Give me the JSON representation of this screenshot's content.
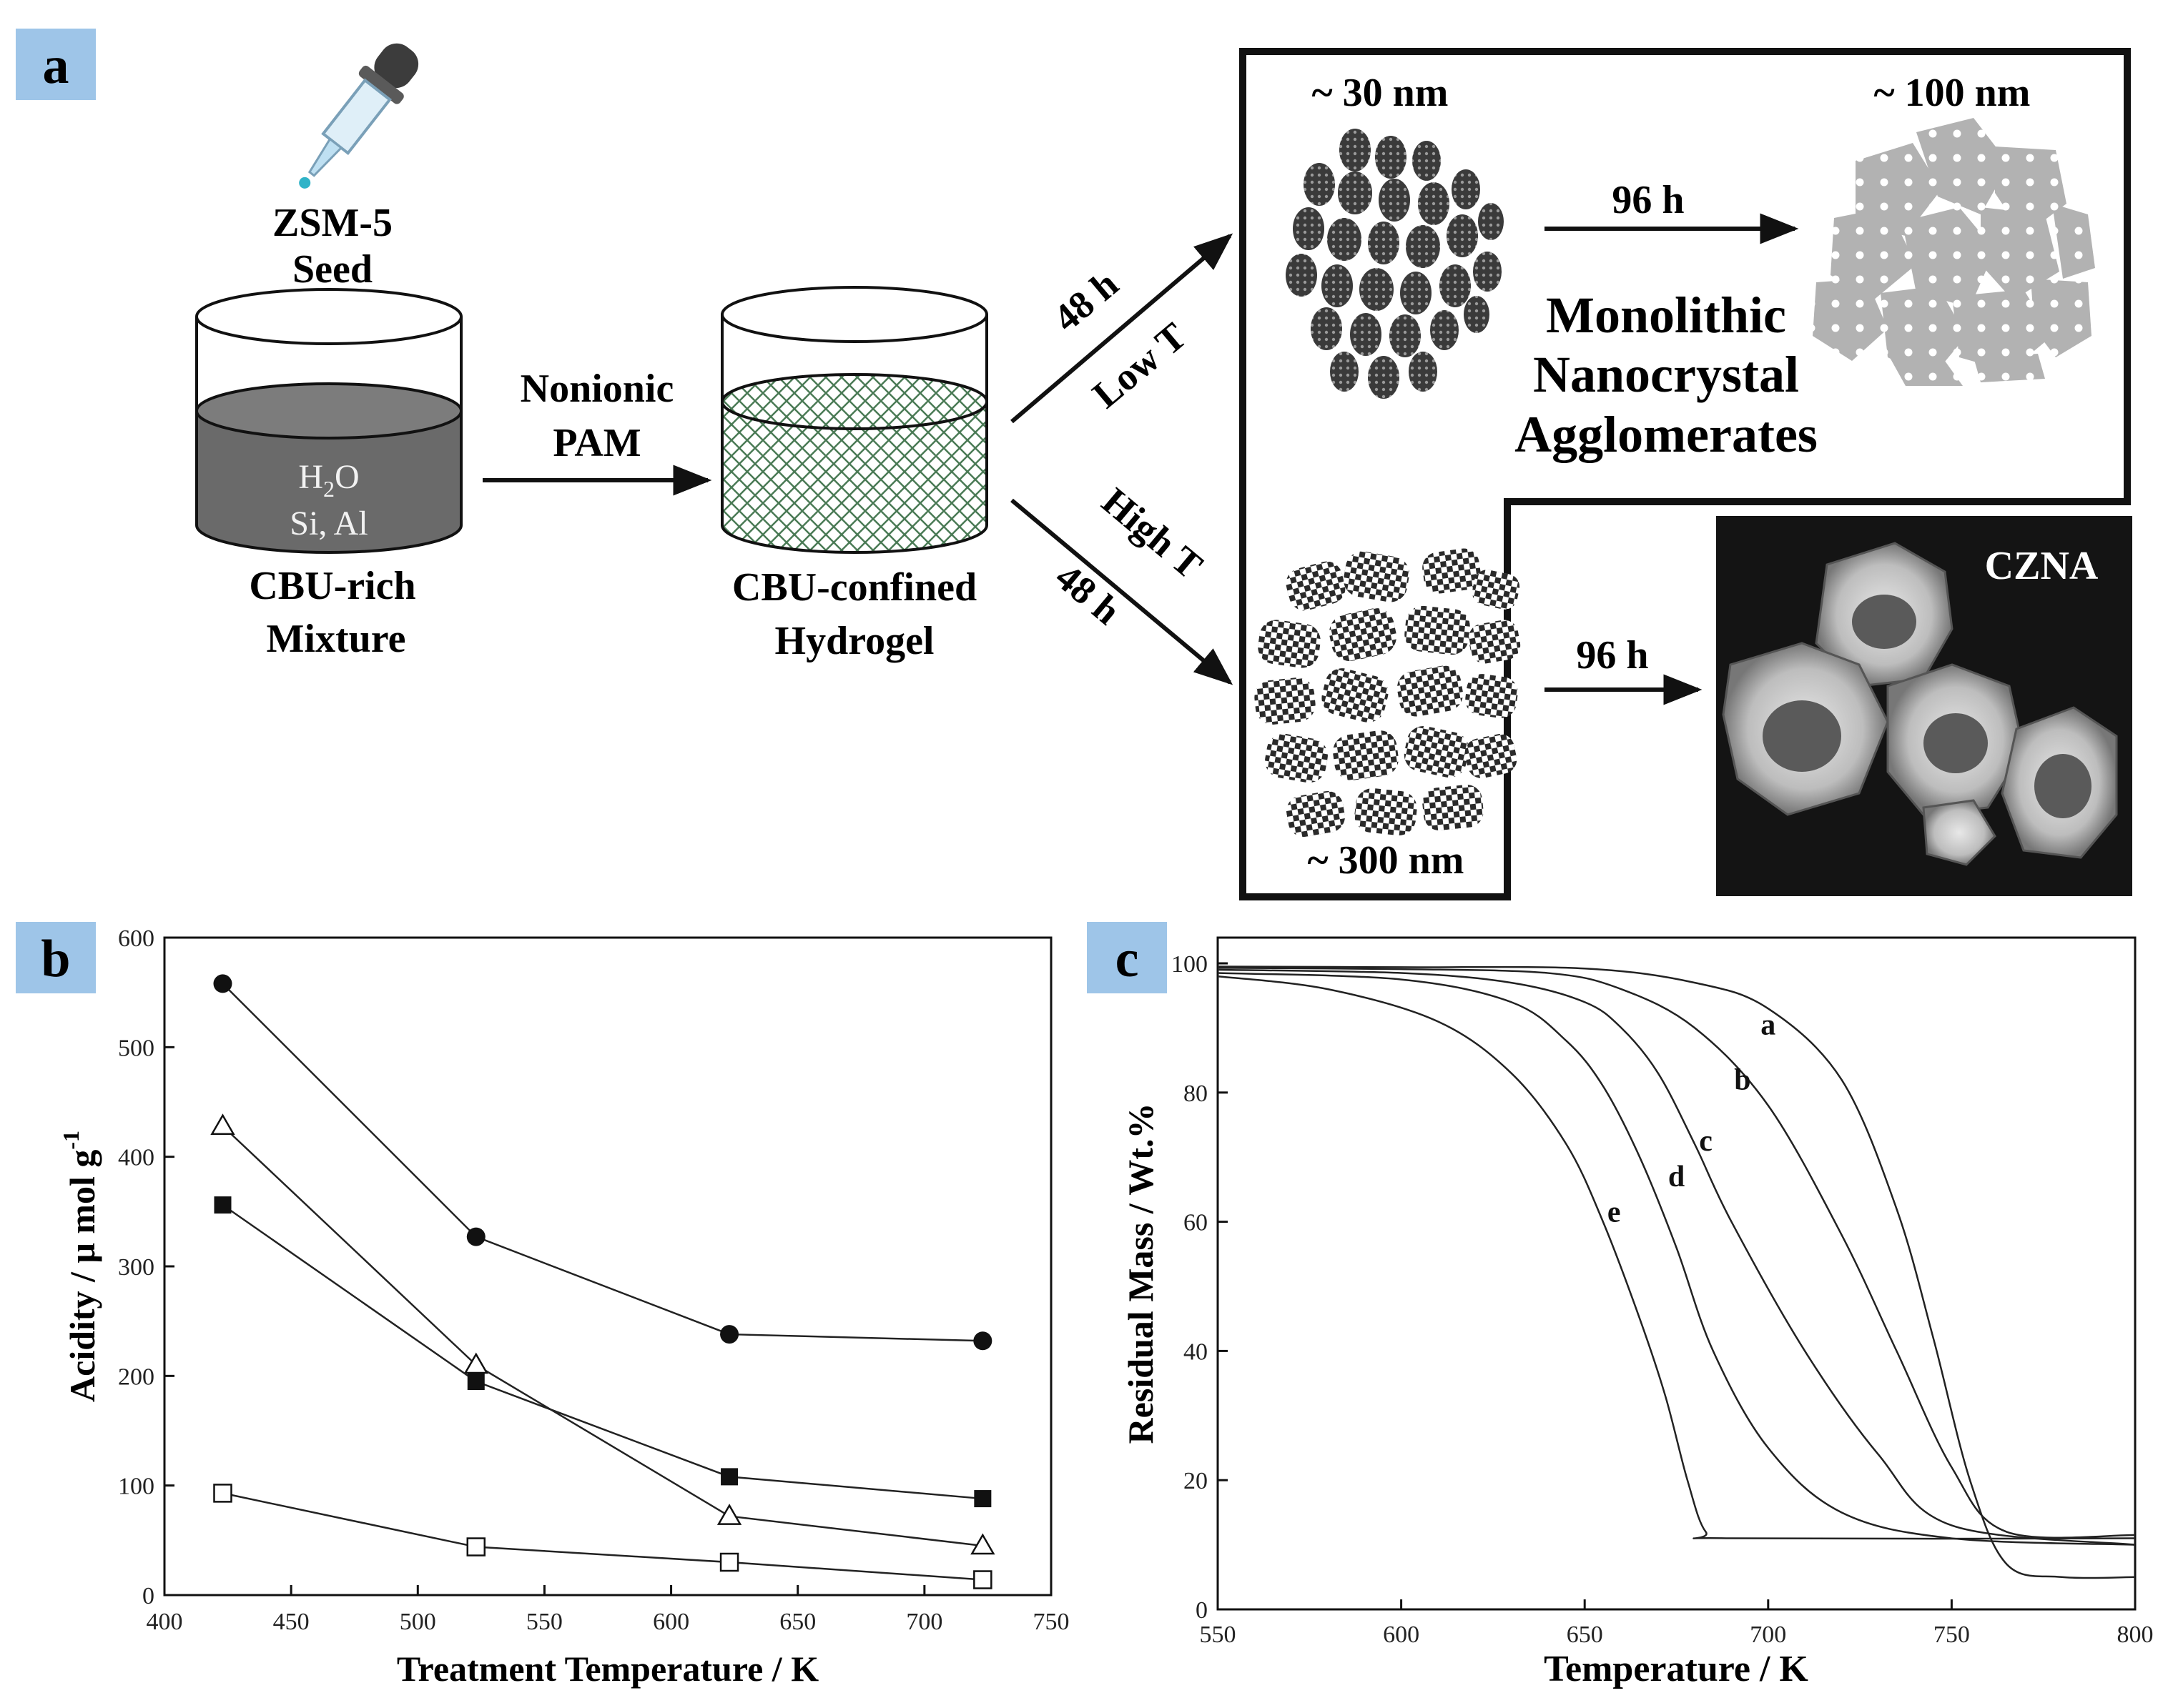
{
  "panel_labels": {
    "a": "a",
    "b": "b",
    "c": "c"
  },
  "colors": {
    "label_bg": "#9ec5e8",
    "cylinder_fill": "#6a6a6a",
    "particle_gray": "#a9a9a9",
    "dark": "#222222"
  },
  "scheme": {
    "seed_line1": "ZSM-5",
    "seed_line2": "Seed",
    "mix_text1": "H",
    "mix_sub": "2",
    "mix_text2": "O",
    "mix_line2": "Si, Al",
    "cbu_rich_line1": "CBU-rich",
    "cbu_rich_line2": "Mixture",
    "arrow1_line1": "Nonionic",
    "arrow1_line2": "PAM",
    "cbu_conf_line1": "CBU-confined",
    "cbu_conf_line2": "Hydrogel",
    "up_time": "48 h",
    "up_temp": "Low T",
    "down_temp": "High T",
    "down_time": "48 h",
    "small_size": "~ 30 nm",
    "large_size": "~ 100 nm",
    "agg_size": "~ 300 nm",
    "time_96_top": "96 h",
    "time_96_bottom": "96 h",
    "mono_line1": "Monolithic",
    "mono_line2": "Nanocrystal",
    "mono_line3": "Agglomerates",
    "sem_label": "CZNA"
  },
  "chart_data": [
    {
      "type": "line",
      "panel": "b",
      "xlabel": "Treatment Temperature / K",
      "ylabel": "Acidity / μ mol g",
      "ylabel_sup": "-1",
      "xlim": [
        400,
        750
      ],
      "ylim": [
        0,
        600
      ],
      "xticks": [
        400,
        450,
        500,
        550,
        600,
        650,
        700,
        750
      ],
      "yticks": [
        0,
        100,
        200,
        300,
        400,
        500,
        600
      ],
      "x": [
        423,
        523,
        623,
        723
      ],
      "series": [
        {
          "name": "filled circle",
          "marker": "circle-filled",
          "values": [
            558,
            327,
            238,
            232
          ]
        },
        {
          "name": "open triangle",
          "marker": "triangle-open",
          "values": [
            428,
            210,
            72,
            45
          ]
        },
        {
          "name": "filled square",
          "marker": "square-filled",
          "values": [
            356,
            195,
            108,
            88
          ]
        },
        {
          "name": "open square",
          "marker": "square-open",
          "values": [
            93,
            44,
            30,
            14
          ]
        }
      ]
    },
    {
      "type": "line",
      "panel": "c",
      "xlabel": "Temperature / K",
      "ylabel": "Residual Mass / Wt.%",
      "xlim": [
        550,
        800
      ],
      "ylim": [
        0,
        100
      ],
      "xticks": [
        550,
        600,
        650,
        700,
        750,
        800
      ],
      "yticks": [
        0,
        20,
        40,
        60,
        80,
        100
      ],
      "series": [
        {
          "name": "a",
          "x": [
            550,
            600,
            650,
            680,
            700,
            720,
            735,
            745,
            755,
            765,
            780,
            800
          ],
          "values": [
            99.5,
            99.4,
            99.2,
            97,
            93,
            82,
            62,
            42,
            20,
            7,
            5,
            5
          ]
        },
        {
          "name": "b",
          "x": [
            550,
            600,
            640,
            660,
            680,
            700,
            720,
            735,
            750,
            765,
            800
          ],
          "values": [
            99.3,
            99.1,
            98.5,
            96,
            90,
            78,
            58,
            40,
            22,
            12,
            11.5
          ]
        },
        {
          "name": "c",
          "x": [
            550,
            600,
            630,
            650,
            660,
            670,
            680,
            690,
            710,
            730,
            750,
            800
          ],
          "values": [
            99,
            98.5,
            97,
            94,
            90,
            83,
            72,
            60,
            40,
            24,
            13,
            10
          ]
        },
        {
          "name": "d",
          "x": [
            550,
            600,
            630,
            645,
            655,
            665,
            675,
            685,
            700,
            720,
            750,
            800
          ],
          "values": [
            98.5,
            97.5,
            94,
            88,
            81,
            70,
            56,
            40,
            25,
            15,
            11,
            10
          ]
        },
        {
          "name": "e",
          "x": [
            550,
            580,
            610,
            630,
            645,
            655,
            665,
            672,
            678,
            683,
            690,
            800
          ],
          "values": [
            98,
            96,
            91,
            83,
            72,
            60,
            45,
            33,
            20,
            12,
            11,
            11
          ]
        }
      ],
      "curve_labels": [
        "a",
        "b",
        "c",
        "d",
        "e"
      ]
    }
  ]
}
